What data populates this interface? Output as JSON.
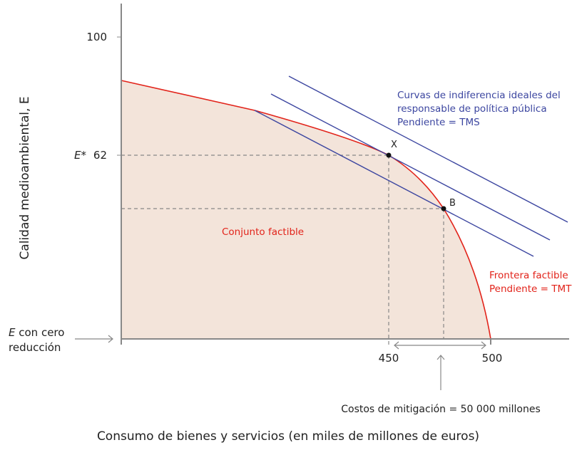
{
  "chart_data": {
    "type": "diagram",
    "ylabel": "Calidad medioambiental, E",
    "xlabel": "Consumo de bienes y servicios (en miles de millones de euros)",
    "y_ticks": [
      "100",
      "62"
    ],
    "y_tick_prefix": "E*",
    "x_ticks": [
      "450",
      "500"
    ],
    "y_baseline_label": [
      "E con cero reducción"
    ],
    "points": [
      {
        "label": "X",
        "consumption": 450,
        "quality": 62
      },
      {
        "label": "B"
      }
    ],
    "region_label": "Conjunto factible",
    "frontier_label": [
      "Frontera factible",
      "Pendiente = TMT"
    ],
    "indifference_label": [
      "Curvas de indiferencia ideales del",
      "responsable de política pública",
      "Pendiente = TMS"
    ],
    "mitigation_label": "Costos de mitigación = 50 000 millones",
    "colors": {
      "frontier": "#e2231a",
      "fill": "#f3e4da",
      "indifference": "#3c46a0",
      "axis": "#888888",
      "text": "#222222"
    }
  }
}
